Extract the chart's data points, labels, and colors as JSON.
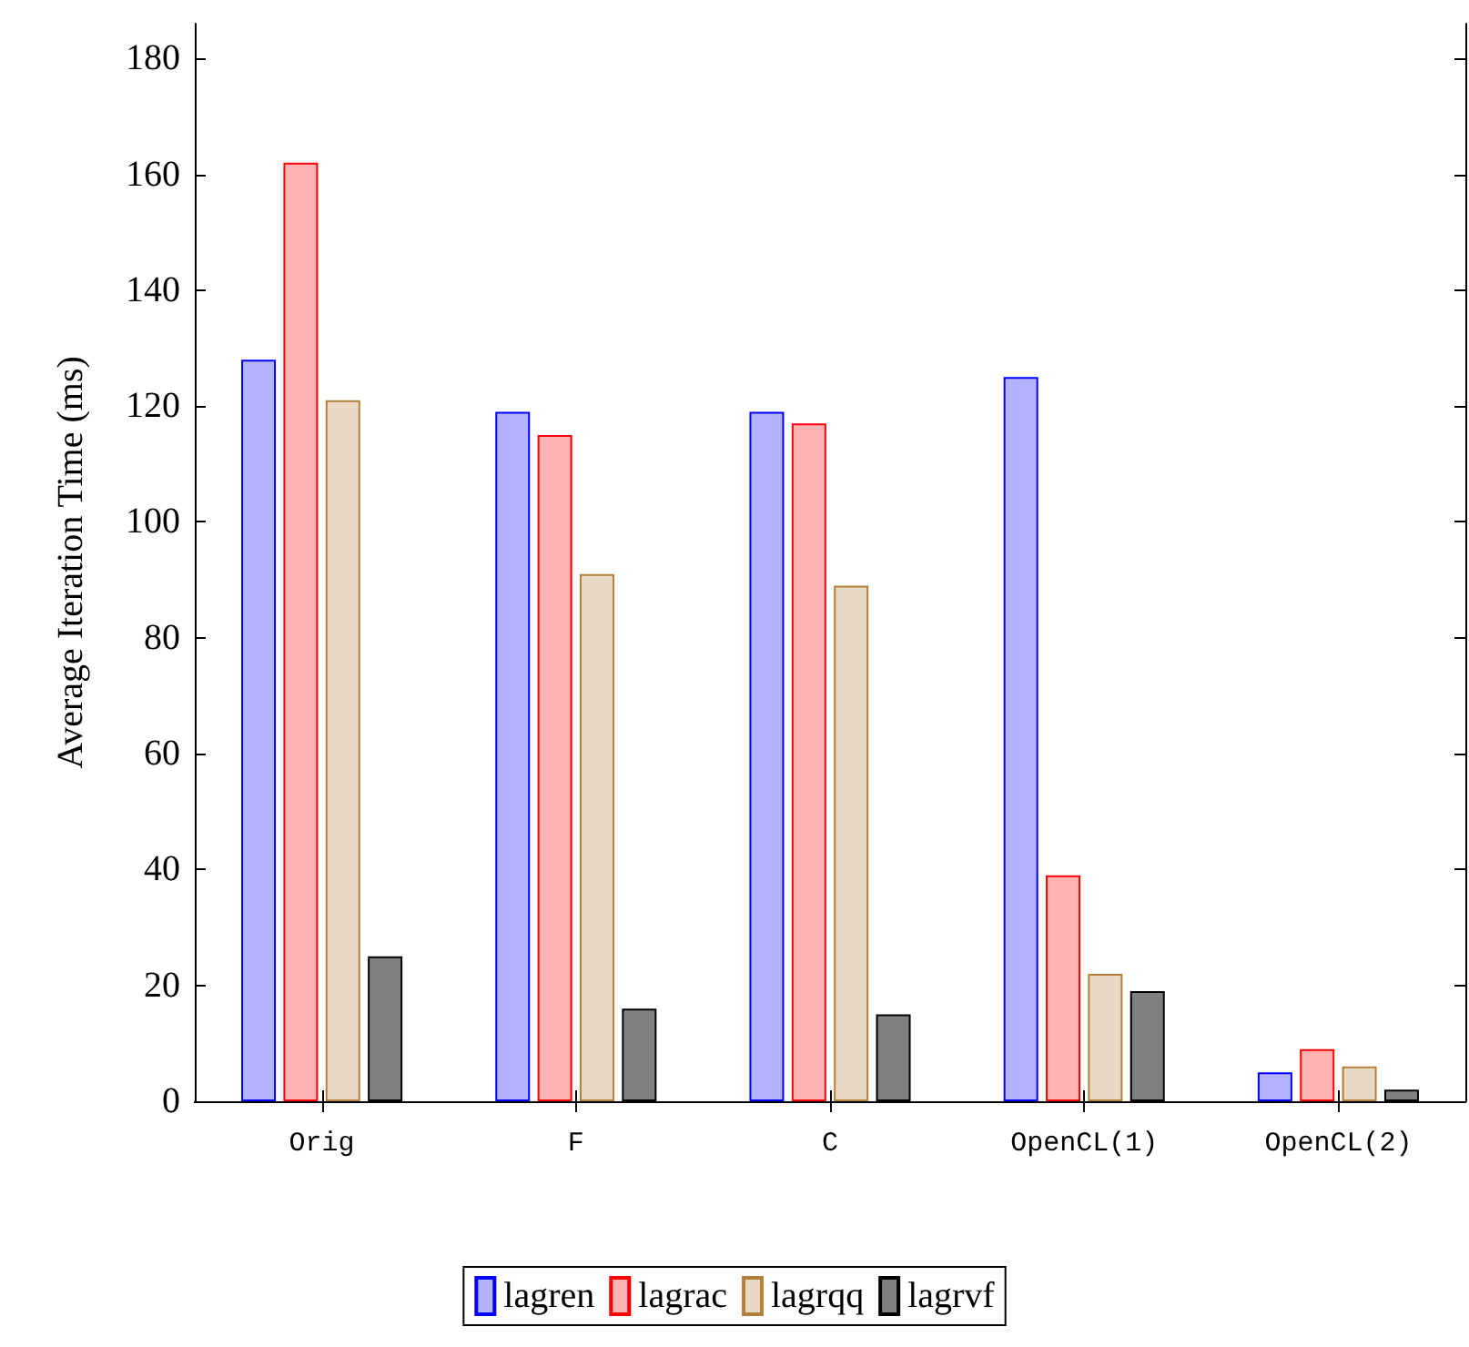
{
  "chart_data": {
    "type": "bar",
    "ylabel": "Average Iteration Time (ms)",
    "categories": [
      "Orig",
      "F",
      "C",
      "OpenCL(1)",
      "OpenCL(2)"
    ],
    "series": [
      {
        "name": "lagren",
        "color": "#b3b3ff",
        "values": [
          128,
          119,
          119,
          125,
          5
        ]
      },
      {
        "name": "lagrac",
        "color": "#ffb3b3",
        "values": [
          162,
          115,
          117,
          39,
          9
        ]
      },
      {
        "name": "lagrqq",
        "color": "#e8d9c4",
        "values": [
          121,
          91,
          89,
          22,
          6
        ]
      },
      {
        "name": "lagrvf",
        "color": "#808080",
        "values": [
          25,
          16,
          15,
          19,
          2
        ]
      }
    ],
    "ylim": [
      0,
      186
    ],
    "yticks": [
      0,
      20,
      40,
      60,
      80,
      100,
      120,
      140,
      160,
      180
    ],
    "grid": false,
    "legend": "bottom"
  }
}
